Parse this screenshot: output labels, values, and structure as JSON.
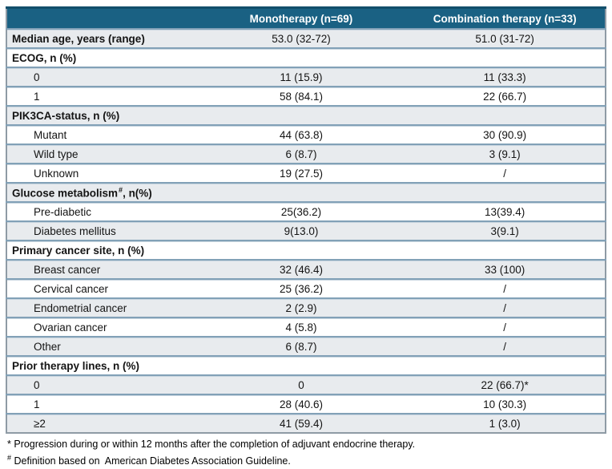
{
  "table": {
    "columns": [
      "",
      "Monotherapy (n=69)",
      "Combination therapy (n=33)"
    ],
    "rows": [
      {
        "type": "data",
        "bold": true,
        "label": "Median age, years (range)",
        "mono": "53.0 (32-72)",
        "combo": "51.0 (31-72)"
      },
      {
        "type": "category",
        "label": "ECOG, n (%)"
      },
      {
        "type": "data",
        "bold": false,
        "label": "0",
        "mono": "11 (15.9)",
        "combo": "11 (33.3)"
      },
      {
        "type": "data",
        "bold": false,
        "label": "1",
        "mono": "58 (84.1)",
        "combo": "22 (66.7)"
      },
      {
        "type": "category",
        "label": "PIK3CA-status, n (%)"
      },
      {
        "type": "data",
        "bold": false,
        "label": "Mutant",
        "mono": "44 (63.8)",
        "combo": "30 (90.9)"
      },
      {
        "type": "data",
        "bold": false,
        "label": "Wild type",
        "mono": "6 (8.7)",
        "combo": "3 (9.1)"
      },
      {
        "type": "data",
        "bold": false,
        "label": "Unknown",
        "mono": "19 (27.5)",
        "combo": "/"
      },
      {
        "type": "category",
        "label": "Glucose metabolism",
        "sup": "#",
        "label_after": ", n(%)"
      },
      {
        "type": "data",
        "bold": false,
        "label": "Pre-diabetic",
        "mono": "25(36.2)",
        "combo": "13(39.4)"
      },
      {
        "type": "data",
        "bold": false,
        "label": "Diabetes mellitus",
        "mono": "9(13.0)",
        "combo": "3(9.1)"
      },
      {
        "type": "category",
        "label": "Primary cancer site, n (%)"
      },
      {
        "type": "data",
        "bold": false,
        "label": "Breast cancer",
        "mono": "32 (46.4)",
        "combo": "33 (100)"
      },
      {
        "type": "data",
        "bold": false,
        "label": "Cervical cancer",
        "mono": "25 (36.2)",
        "combo": "/"
      },
      {
        "type": "data",
        "bold": false,
        "label": "Endometrial cancer",
        "mono": "2 (2.9)",
        "combo": "/"
      },
      {
        "type": "data",
        "bold": false,
        "label": "Ovarian cancer",
        "mono": "4 (5.8)",
        "combo": "/"
      },
      {
        "type": "data",
        "bold": false,
        "label": "Other",
        "mono": "6 (8.7)",
        "combo": "/"
      },
      {
        "type": "category",
        "label": "Prior therapy lines, n (%)"
      },
      {
        "type": "data",
        "bold": false,
        "label": "0",
        "mono": "0",
        "combo": "22 (66.7)*"
      },
      {
        "type": "data",
        "bold": false,
        "label": "1",
        "mono": "28 (40.6)",
        "combo": "10 (30.3)"
      },
      {
        "type": "data",
        "bold": false,
        "label": "≥2",
        "mono": "41 (59.4)",
        "combo": "1 (3.0)"
      }
    ]
  },
  "footnotes": [
    {
      "marker": "*",
      "text": "Progression during or within 12 months after the completion of adjuvant endocrine therapy."
    },
    {
      "marker": "#",
      "text": "Definition based on  American Diabetes Association Guideline."
    }
  ],
  "colors": {
    "header_bg": "#1a6183",
    "header_top_edge": "#124f6b",
    "header_text": "#ffffff",
    "shade_row_bg": "#e8ebee",
    "row_border": "#82a1b7",
    "row_border_light": "#c9d6e0",
    "outer_border": "#8f9ba5",
    "body_text": "#141414"
  }
}
